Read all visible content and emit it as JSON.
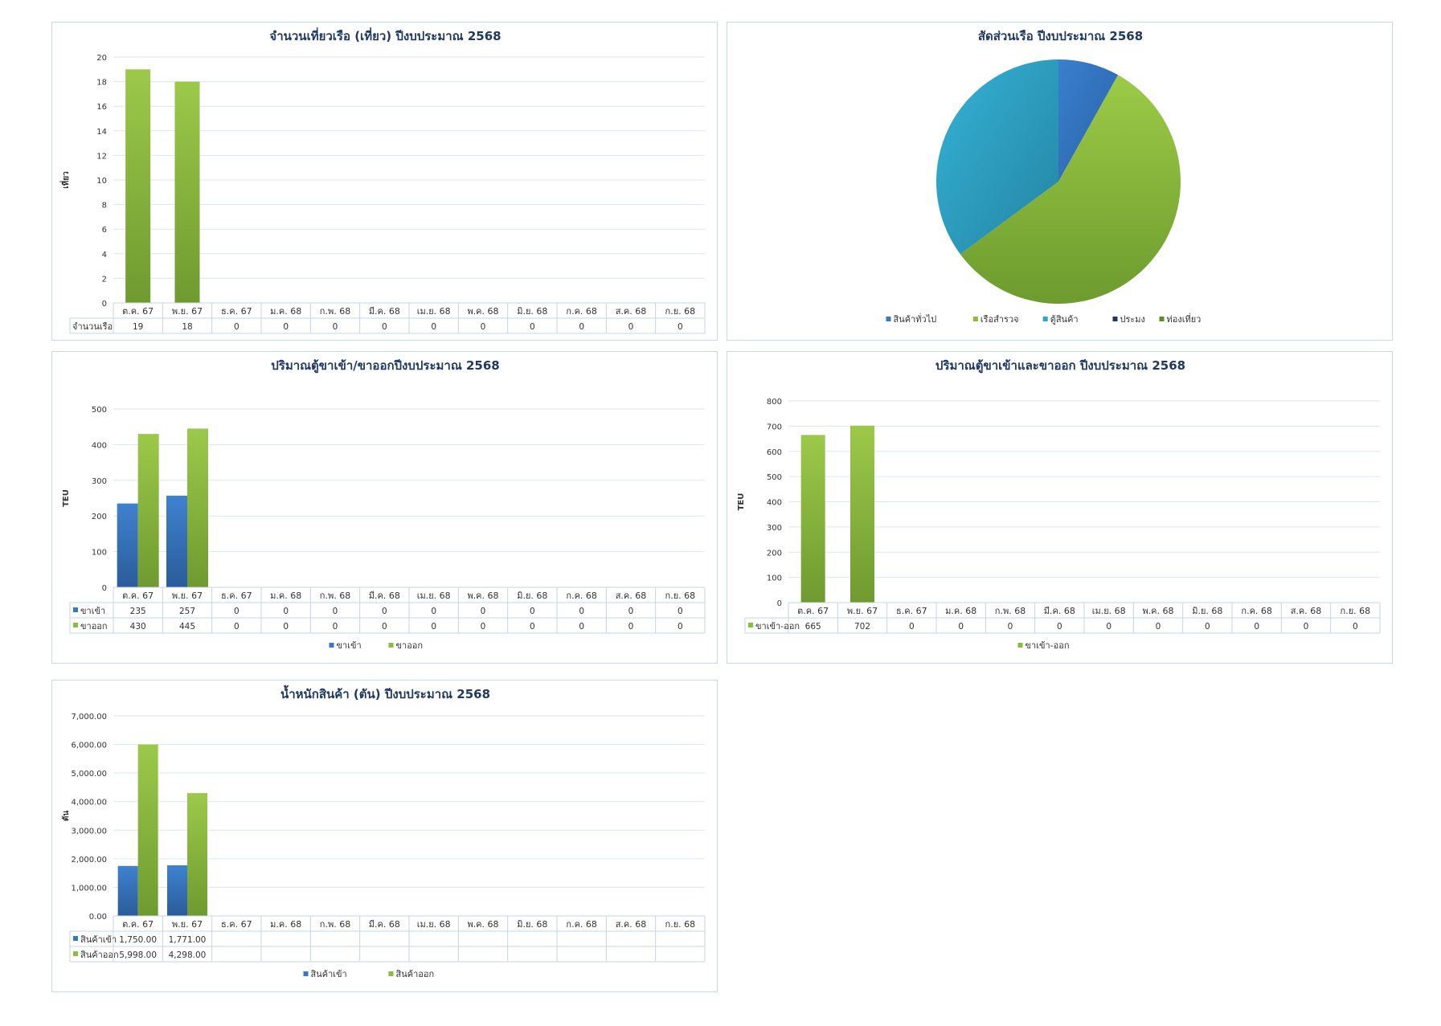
{
  "colors": {
    "title": "#1f3864",
    "blue": "#3a78c4",
    "green": "#8bbe3c",
    "cyan": "#2fa6c8",
    "navy": "#203864",
    "olive": "#5f8a2a",
    "grid": "#dce6f0",
    "text": "#333333"
  },
  "chart_data": [
    {
      "id": "c1",
      "type": "bar",
      "title": "จำนวนเที่ยวเรือ (เที่ยว) ปีงบประมาณ 2568",
      "ylabel": "เที่ยว",
      "ylim": [
        0,
        20
      ],
      "yticks": [
        "0",
        "2",
        "4",
        "6",
        "8",
        "10",
        "12",
        "14",
        "16",
        "18",
        "20"
      ],
      "categories": [
        "ต.ค. 67",
        "พ.ย. 67",
        "ธ.ค. 67",
        "ม.ค. 68",
        "ก.พ. 68",
        "มี.ค. 68",
        "เม.ย. 68",
        "พ.ค. 68",
        "มิ.ย. 68",
        "ก.ค. 68",
        "ส.ค. 68",
        "ก.ย. 68"
      ],
      "series": [
        {
          "name": "จำนวนเรือ",
          "color": "green",
          "values": [
            19,
            18,
            0,
            0,
            0,
            0,
            0,
            0,
            0,
            0,
            0,
            0
          ],
          "table": [
            "19",
            "18",
            "0",
            "0",
            "0",
            "0",
            "0",
            "0",
            "0",
            "0",
            "0",
            "0"
          ]
        }
      ],
      "legend": []
    },
    {
      "id": "c2",
      "type": "pie",
      "title": "สัดส่วนเรือ ปีงบประมาณ 2568",
      "slices": [
        {
          "name": "สินค้าทั่วไป",
          "value": 3,
          "color": "blue"
        },
        {
          "name": "เรือสำรวจ",
          "value": 21,
          "color": "green"
        },
        {
          "name": "ตู้สินค้า",
          "value": 13,
          "color": "cyan"
        },
        {
          "name": "ประมง",
          "value": 0,
          "color": "navy"
        },
        {
          "name": "ท่องเที่ยว",
          "value": 0,
          "color": "olive"
        }
      ]
    },
    {
      "id": "c3",
      "type": "bar",
      "title": "ปริมาณตู้ขาเข้า/ขาออกปีงบประมาณ 2568",
      "ylabel": "TEU",
      "ylim": [
        0,
        500
      ],
      "yticks": [
        "0",
        "100",
        "200",
        "300",
        "400",
        "500"
      ],
      "categories": [
        "ต.ค. 67",
        "พ.ย. 67",
        "ธ.ค. 67",
        "ม.ค. 68",
        "ก.พ. 68",
        "มี.ค. 68",
        "เม.ย. 68",
        "พ.ค. 68",
        "มิ.ย. 68",
        "ก.ค. 68",
        "ส.ค. 68",
        "ก.ย. 68"
      ],
      "series": [
        {
          "name": "ขาเข้า",
          "color": "blue",
          "values": [
            235,
            257,
            0,
            0,
            0,
            0,
            0,
            0,
            0,
            0,
            0,
            0
          ],
          "table": [
            "235",
            "257",
            "0",
            "0",
            "0",
            "0",
            "0",
            "0",
            "0",
            "0",
            "0",
            "0"
          ]
        },
        {
          "name": "ขาออก",
          "color": "green",
          "values": [
            430,
            445,
            0,
            0,
            0,
            0,
            0,
            0,
            0,
            0,
            0,
            0
          ],
          "table": [
            "430",
            "445",
            "0",
            "0",
            "0",
            "0",
            "0",
            "0",
            "0",
            "0",
            "0",
            "0"
          ]
        }
      ],
      "legend": [
        "ขาเข้า",
        "ขาออก"
      ]
    },
    {
      "id": "c4",
      "type": "bar",
      "title": "ปริมาณตู้ขาเข้าและขาออก ปีงบประมาณ 2568",
      "ylabel": "TEU",
      "ylim": [
        0,
        800
      ],
      "yticks": [
        "0",
        "100",
        "200",
        "300",
        "400",
        "500",
        "600",
        "700",
        "800"
      ],
      "categories": [
        "ต.ค. 67",
        "พ.ย. 67",
        "ธ.ค. 67",
        "ม.ค. 68",
        "ก.พ. 68",
        "มี.ค. 68",
        "เม.ย. 68",
        "พ.ค. 68",
        "มิ.ย. 68",
        "ก.ค. 68",
        "ส.ค. 68",
        "ก.ย. 68"
      ],
      "series": [
        {
          "name": "ขาเข้า-ออก",
          "color": "green",
          "values": [
            665,
            702,
            0,
            0,
            0,
            0,
            0,
            0,
            0,
            0,
            0,
            0
          ],
          "table": [
            "665",
            "702",
            "0",
            "0",
            "0",
            "0",
            "0",
            "0",
            "0",
            "0",
            "0",
            "0"
          ]
        }
      ],
      "legend": [
        "ขาเข้า-ออก"
      ]
    },
    {
      "id": "c5",
      "type": "bar",
      "title": "น้ำหนักสินค้า (ตัน) ปีงบประมาณ 2568",
      "ylabel": "ตัน",
      "ylim": [
        0,
        7000
      ],
      "yticks": [
        "0.00",
        "1,000.00",
        "2,000.00",
        "3,000.00",
        "4,000.00",
        "5,000.00",
        "6,000.00",
        "7,000.00"
      ],
      "categories": [
        "ต.ค. 67",
        "พ.ย. 67",
        "ธ.ค. 67",
        "ม.ค. 68",
        "ก.พ. 68",
        "มี.ค. 68",
        "เม.ย. 68",
        "พ.ค. 68",
        "มิ.ย. 68",
        "ก.ค. 68",
        "ส.ค. 68",
        "ก.ย. 68"
      ],
      "series": [
        {
          "name": "สินค้าเข้า",
          "color": "blue",
          "values": [
            1750,
            1771,
            0,
            0,
            0,
            0,
            0,
            0,
            0,
            0,
            0,
            0
          ],
          "table": [
            "1,750.00",
            "1,771.00",
            "",
            "",
            "",
            "",
            "",
            "",
            "",
            "",
            "",
            ""
          ]
        },
        {
          "name": "สินค้าออก",
          "color": "green",
          "values": [
            5998,
            4298,
            0,
            0,
            0,
            0,
            0,
            0,
            0,
            0,
            0,
            0
          ],
          "table": [
            "5,998.00",
            "4,298.00",
            "",
            "",
            "",
            "",
            "",
            "",
            "",
            "",
            "",
            ""
          ]
        }
      ],
      "legend": [
        "สินค้าเข้า",
        "สินค้าออก"
      ]
    }
  ]
}
